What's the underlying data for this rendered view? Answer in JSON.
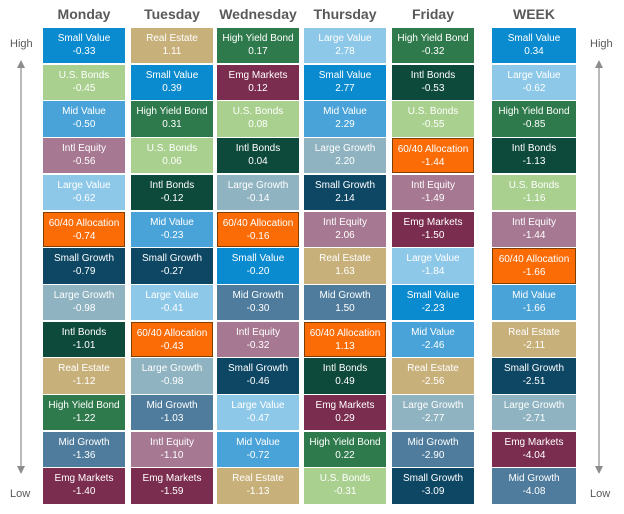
{
  "chart_data": {
    "type": "table",
    "columns": [
      "Monday",
      "Tuesday",
      "Wednesday",
      "Thursday",
      "Friday",
      "WEEK"
    ],
    "axis_labels": {
      "top": "High",
      "bottom": "Low"
    },
    "highlight": "60/40 Allocation",
    "colors": {
      "Small Value": "#0b8bcf",
      "Real Estate": "#c8b07a",
      "High Yield Bond": "#2f7a4c",
      "Large Value": "#8ec8e8",
      "U.S. Bonds": "#a9d08e",
      "Emg Markets": "#7b2d4f",
      "Intl Bonds": "#0e4a3b",
      "Mid Value": "#4aa3d8",
      "Intl Equity": "#a67891",
      "Large Growth": "#8fb3c1",
      "Small Growth": "#0d4764",
      "60/40 Allocation": "#fb6c07",
      "Mid Growth": "#4f7c9c"
    },
    "data": [
      [
        {
          "name": "Small Value",
          "value": "-0.33"
        },
        {
          "name": "U.S. Bonds",
          "value": "-0.45"
        },
        {
          "name": "Mid Value",
          "value": "-0.50"
        },
        {
          "name": "Intl Equity",
          "value": "-0.56"
        },
        {
          "name": "Large Value",
          "value": "-0.62"
        },
        {
          "name": "60/40 Allocation",
          "value": "-0.74"
        },
        {
          "name": "Small Growth",
          "value": "-0.79"
        },
        {
          "name": "Large Growth",
          "value": "-0.98"
        },
        {
          "name": "Intl Bonds",
          "value": "-1.01"
        },
        {
          "name": "Real Estate",
          "value": "-1.12"
        },
        {
          "name": "High Yield Bond",
          "value": "-1.22"
        },
        {
          "name": "Mid Growth",
          "value": "-1.36"
        },
        {
          "name": "Emg Markets",
          "value": "-1.40"
        }
      ],
      [
        {
          "name": "Real Estate",
          "value": "1.11"
        },
        {
          "name": "Small Value",
          "value": "0.39"
        },
        {
          "name": "High Yield Bond",
          "value": "0.31"
        },
        {
          "name": "U.S. Bonds",
          "value": "0.06"
        },
        {
          "name": "Intl Bonds",
          "value": "-0.12"
        },
        {
          "name": "Mid Value",
          "value": "-0.23"
        },
        {
          "name": "Small Growth",
          "value": "-0.27"
        },
        {
          "name": "Large Value",
          "value": "-0.41"
        },
        {
          "name": "60/40 Allocation",
          "value": "-0.43"
        },
        {
          "name": "Large Growth",
          "value": "-0.98"
        },
        {
          "name": "Mid Growth",
          "value": "-1.03"
        },
        {
          "name": "Intl Equity",
          "value": "-1.10"
        },
        {
          "name": "Emg Markets",
          "value": "-1.59"
        }
      ],
      [
        {
          "name": "High Yield Bond",
          "value": "0.17"
        },
        {
          "name": "Emg Markets",
          "value": "0.12"
        },
        {
          "name": "U.S. Bonds",
          "value": "0.08"
        },
        {
          "name": "Intl Bonds",
          "value": "0.04"
        },
        {
          "name": "Large Growth",
          "value": "-0.14"
        },
        {
          "name": "60/40 Allocation",
          "value": "-0.16"
        },
        {
          "name": "Small Value",
          "value": "-0.20"
        },
        {
          "name": "Mid Growth",
          "value": "-0.30"
        },
        {
          "name": "Intl Equity",
          "value": "-0.32"
        },
        {
          "name": "Small Growth",
          "value": "-0.46"
        },
        {
          "name": "Large Value",
          "value": "-0.47"
        },
        {
          "name": "Mid Value",
          "value": "-0.72"
        },
        {
          "name": "Real Estate",
          "value": "-1.13"
        }
      ],
      [
        {
          "name": "Large Value",
          "value": "2.78"
        },
        {
          "name": "Small Value",
          "value": "2.77"
        },
        {
          "name": "Mid Value",
          "value": "2.29"
        },
        {
          "name": "Large Growth",
          "value": "2.20"
        },
        {
          "name": "Small Growth",
          "value": "2.14"
        },
        {
          "name": "Intl Equity",
          "value": "2.06"
        },
        {
          "name": "Real Estate",
          "value": "1.63"
        },
        {
          "name": "Mid Growth",
          "value": "1.50"
        },
        {
          "name": "60/40 Allocation",
          "value": "1.13"
        },
        {
          "name": "Intl Bonds",
          "value": "0.49"
        },
        {
          "name": "Emg Markets",
          "value": "0.29"
        },
        {
          "name": "High Yield Bond",
          "value": "0.22"
        },
        {
          "name": "U.S. Bonds",
          "value": "-0.31"
        }
      ],
      [
        {
          "name": "High Yield Bond",
          "value": "-0.32"
        },
        {
          "name": "Intl Bonds",
          "value": "-0.53"
        },
        {
          "name": "U.S. Bonds",
          "value": "-0.55"
        },
        {
          "name": "60/40 Allocation",
          "value": "-1.44"
        },
        {
          "name": "Intl Equity",
          "value": "-1.49"
        },
        {
          "name": "Emg Markets",
          "value": "-1.50"
        },
        {
          "name": "Large Value",
          "value": "-1.84"
        },
        {
          "name": "Small Value",
          "value": "-2.23"
        },
        {
          "name": "Mid Value",
          "value": "-2.46"
        },
        {
          "name": "Real Estate",
          "value": "-2.56"
        },
        {
          "name": "Large Growth",
          "value": "-2.77"
        },
        {
          "name": "Mid Growth",
          "value": "-2.90"
        },
        {
          "name": "Small Growth",
          "value": "-3.09"
        }
      ],
      [
        {
          "name": "Small Value",
          "value": "0.34"
        },
        {
          "name": "Large Value",
          "value": "-0.62"
        },
        {
          "name": "High Yield Bond",
          "value": "-0.85"
        },
        {
          "name": "Intl Bonds",
          "value": "-1.13"
        },
        {
          "name": "U.S. Bonds",
          "value": "-1.16"
        },
        {
          "name": "Intl Equity",
          "value": "-1.44"
        },
        {
          "name": "60/40 Allocation",
          "value": "-1.66"
        },
        {
          "name": "Mid Value",
          "value": "-1.66"
        },
        {
          "name": "Real Estate",
          "value": "-2.11"
        },
        {
          "name": "Small Growth",
          "value": "-2.51"
        },
        {
          "name": "Large Growth",
          "value": "-2.71"
        },
        {
          "name": "Emg Markets",
          "value": "-4.04"
        },
        {
          "name": "Mid Growth",
          "value": "-4.08"
        }
      ]
    ]
  }
}
